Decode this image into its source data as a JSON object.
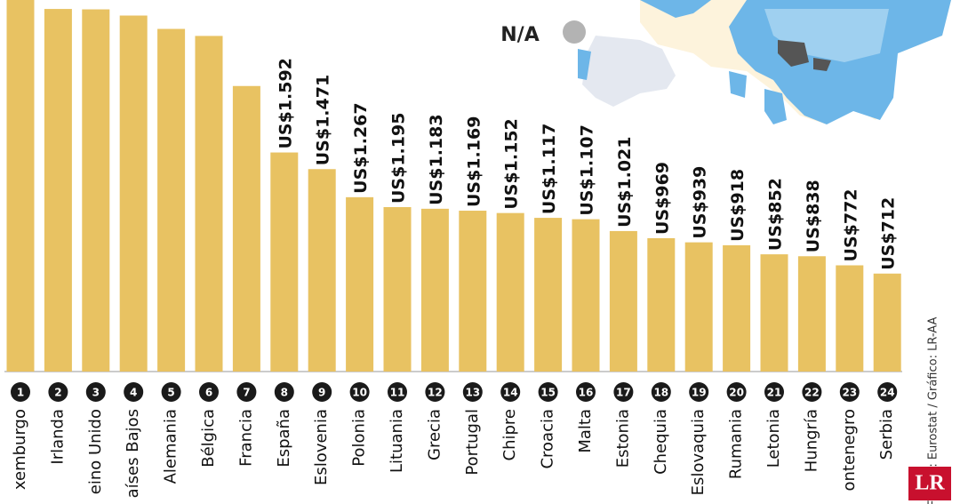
{
  "chart_data": {
    "type": "bar",
    "categories": [
      "xemburgo",
      "Irlanda",
      "eino Unido",
      "aíses Bajos",
      "Alemania",
      "Bélgica",
      "Francia",
      "España",
      "Eslovenia",
      "Polonia",
      "Lituania",
      "Grecia",
      "Portugal",
      "Chipre",
      "Croacia",
      "Malta",
      "Estonia",
      "Chequia",
      "Eslovaquia",
      "Rumania",
      "Letonia",
      "Hungría",
      "ontenegro",
      "Serbia"
    ],
    "ranks": [
      1,
      2,
      3,
      4,
      5,
      6,
      7,
      8,
      9,
      10,
      11,
      12,
      13,
      14,
      15,
      16,
      17,
      18,
      19,
      20,
      21,
      22,
      23,
      24
    ],
    "values": [
      2750,
      2635,
      2632,
      2587,
      2490,
      2439,
      2075,
      1592,
      1471,
      1267,
      1195,
      1183,
      1169,
      1152,
      1117,
      1107,
      1021,
      969,
      939,
      918,
      852,
      838,
      772,
      712
    ],
    "value_labels": [
      null,
      null,
      null,
      null,
      null,
      null,
      null,
      "US$1.592",
      "US$1.471",
      "US$1.267",
      "US$1.195",
      "US$1.183",
      "US$1.169",
      "US$1.152",
      "US$1.117",
      "US$1.107",
      "US$1.021",
      "US$969",
      "US$939",
      "US$918",
      "US$852",
      "US$838",
      "US$772",
      "US$712"
    ],
    "color": "#e8c262",
    "ylim": [
      0,
      2700
    ],
    "legend": {
      "label": "N/A",
      "color": "#b3b3b3"
    },
    "source": "Fuente: Eurostat / Gráfico: LR-AA",
    "logo": "LR"
  }
}
